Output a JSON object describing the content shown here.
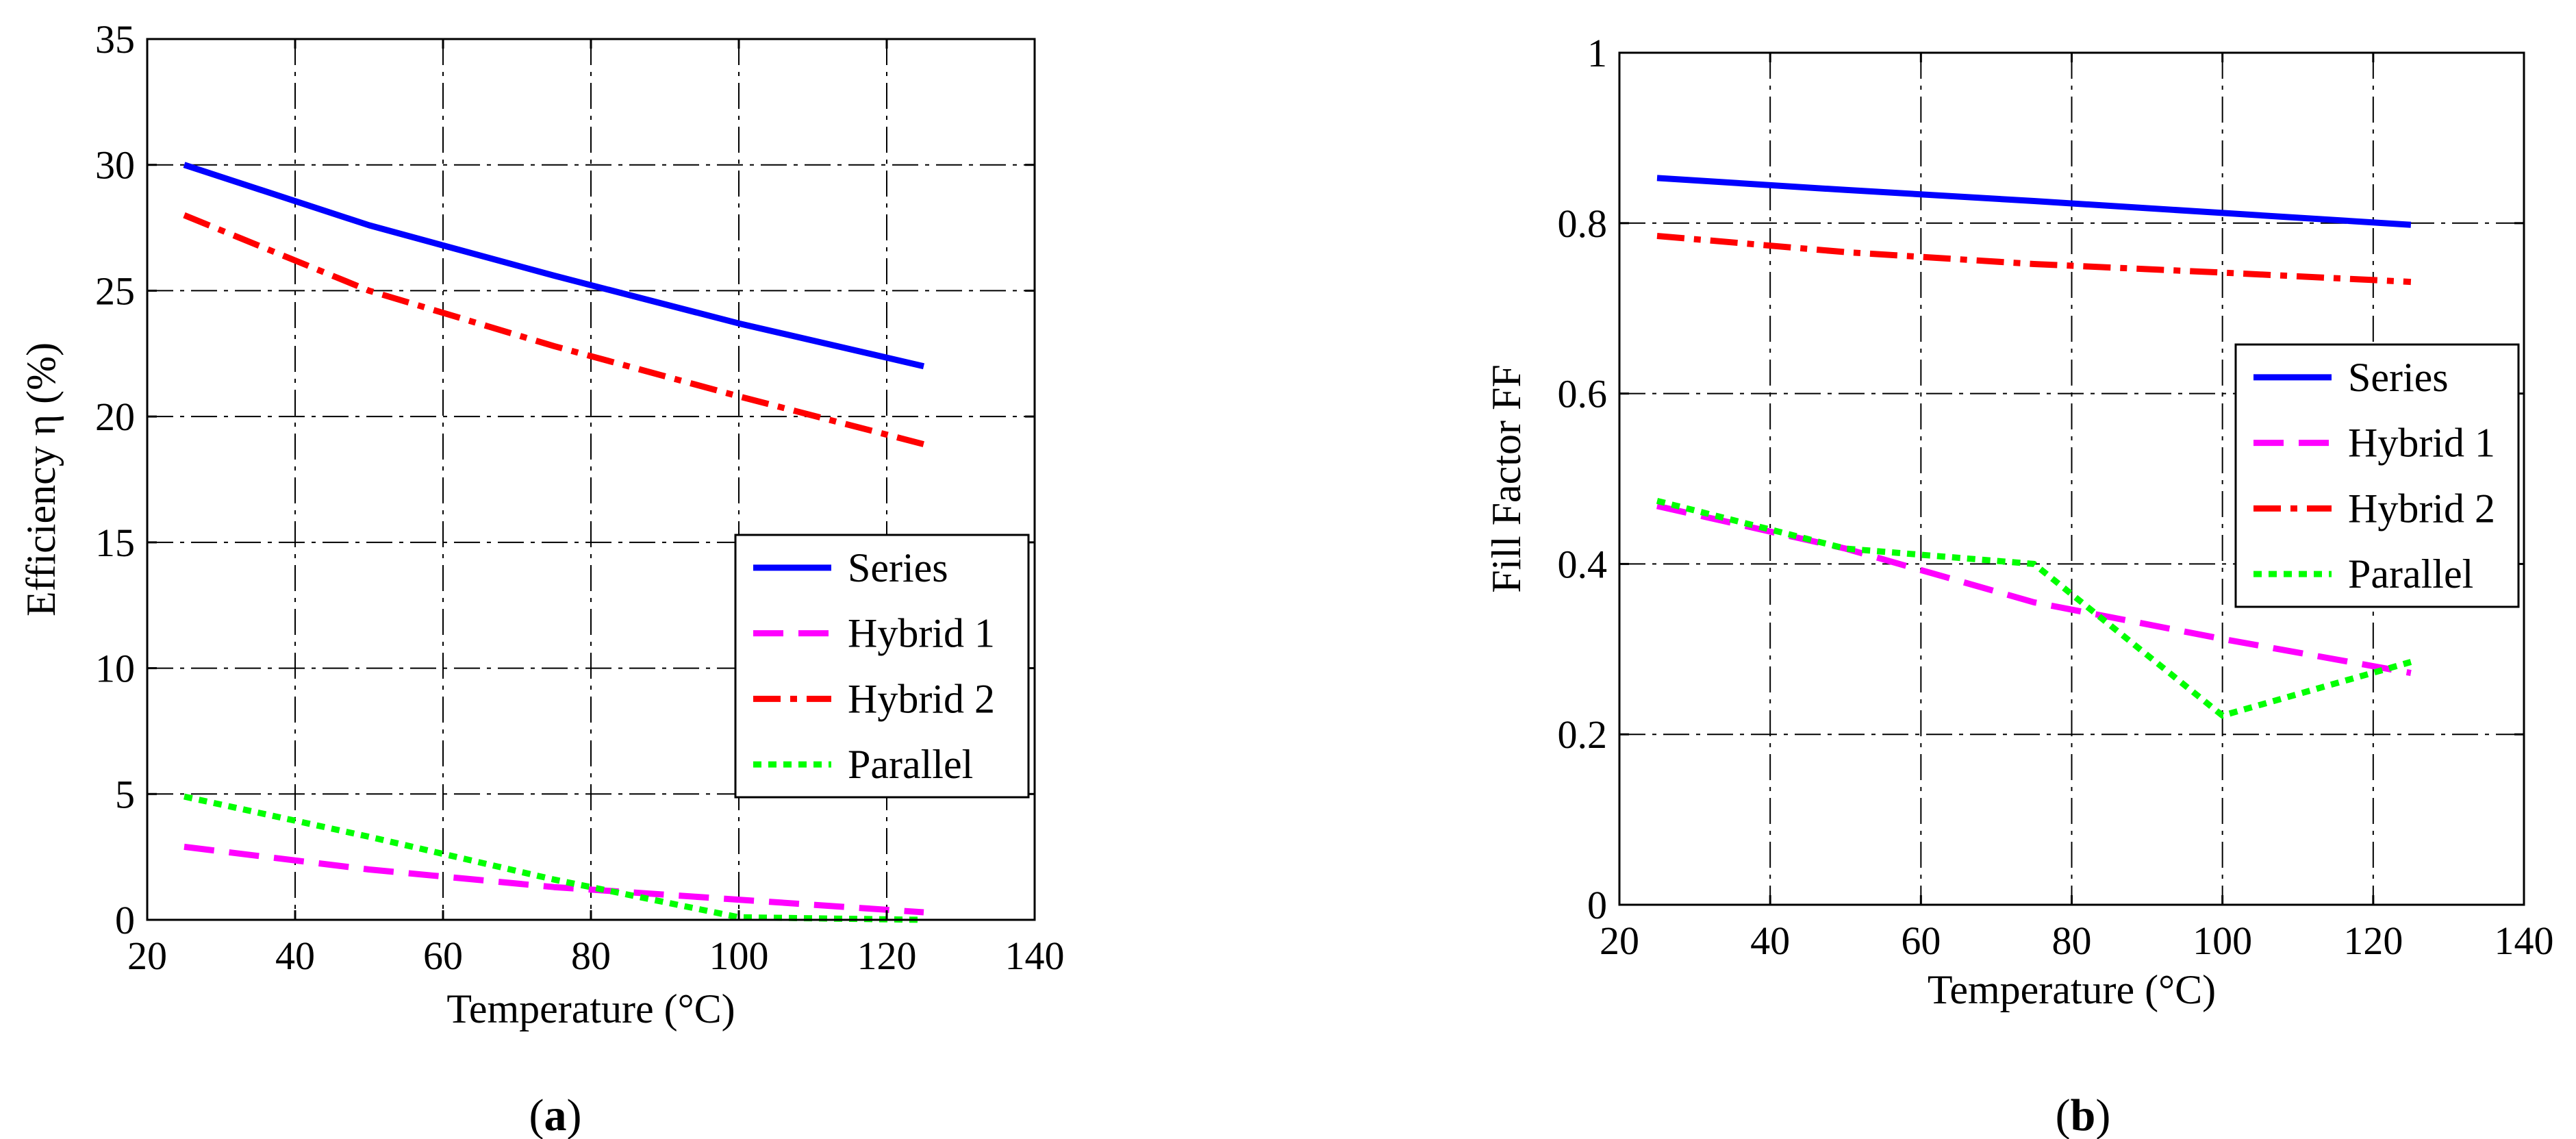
{
  "chart_data": [
    {
      "id": "a",
      "type": "line",
      "caption": {
        "open": "(",
        "letter": "a",
        "close": ")"
      },
      "xlabel": "Temperature (°C)",
      "ylabel": "Efficiency η (%)",
      "xlim": [
        20,
        140
      ],
      "ylim": [
        0,
        35
      ],
      "xticks": [
        20,
        40,
        60,
        80,
        100,
        120,
        140
      ],
      "yticks": [
        0,
        5,
        10,
        15,
        20,
        25,
        30,
        35
      ],
      "grid": true,
      "legend_position": "lower-right",
      "series": [
        {
          "name": "Series",
          "color": "#0000ff",
          "style": "solid",
          "x": [
            25,
            50,
            75,
            100,
            125
          ],
          "y": [
            30.0,
            27.6,
            25.6,
            23.7,
            22.0
          ]
        },
        {
          "name": "Hybrid 1",
          "color": "#ff00ff",
          "style": "dashed",
          "x": [
            25,
            50,
            75,
            100,
            125
          ],
          "y": [
            2.9,
            2.0,
            1.3,
            0.8,
            0.3
          ]
        },
        {
          "name": "Hybrid 2",
          "color": "#ff0000",
          "style": "dashdot",
          "x": [
            25,
            50,
            75,
            100,
            125
          ],
          "y": [
            28.0,
            25.0,
            22.8,
            20.8,
            18.9
          ]
        },
        {
          "name": "Parallel",
          "color": "#00ff00",
          "style": "dotted",
          "x": [
            25,
            50,
            75,
            100,
            125
          ],
          "y": [
            4.9,
            3.3,
            1.6,
            0.1,
            0.0
          ]
        }
      ]
    },
    {
      "id": "b",
      "type": "line",
      "caption": {
        "open": "(",
        "letter": "b",
        "close": ")"
      },
      "xlabel": "Temperature (°C)",
      "ylabel": "Fill Factor FF",
      "xlim": [
        20,
        140
      ],
      "ylim": [
        0,
        1
      ],
      "xticks": [
        20,
        40,
        60,
        80,
        100,
        120,
        140
      ],
      "yticks": [
        0,
        0.2,
        0.4,
        0.6,
        0.8,
        1
      ],
      "ytick_labels": [
        "0",
        "0.2",
        "0.4",
        "0.6",
        "0.8",
        "1"
      ],
      "grid": true,
      "legend_position": "middle-right",
      "series": [
        {
          "name": "Series",
          "color": "#0000ff",
          "style": "solid",
          "x": [
            25,
            50,
            75,
            100,
            125
          ],
          "y": [
            0.853,
            0.839,
            0.826,
            0.812,
            0.798
          ]
        },
        {
          "name": "Hybrid 1",
          "color": "#ff00ff",
          "style": "dashed",
          "x": [
            25,
            50,
            75,
            100,
            125
          ],
          "y": [
            0.468,
            0.418,
            0.355,
            0.312,
            0.272
          ]
        },
        {
          "name": "Hybrid 2",
          "color": "#ff0000",
          "style": "dashdot",
          "x": [
            25,
            50,
            75,
            100,
            125
          ],
          "y": [
            0.785,
            0.766,
            0.752,
            0.742,
            0.731
          ]
        },
        {
          "name": "Parallel",
          "color": "#00ff00",
          "style": "dotted",
          "x": [
            25,
            50,
            75,
            100,
            125
          ],
          "y": [
            0.474,
            0.418,
            0.4,
            0.222,
            0.285
          ]
        }
      ]
    }
  ]
}
